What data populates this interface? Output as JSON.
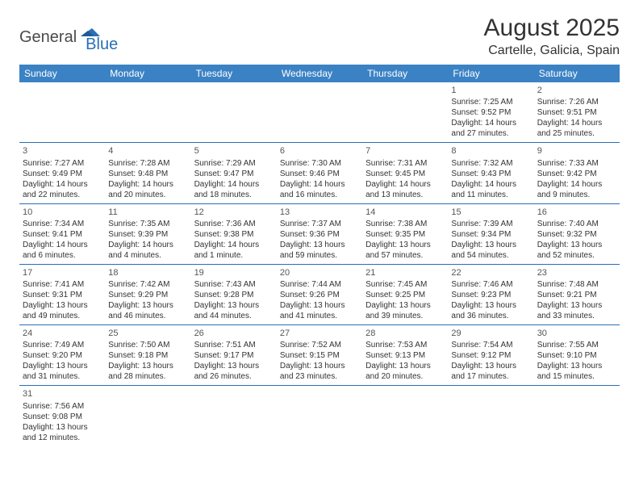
{
  "brand": {
    "part1": "General",
    "part2": "Blue"
  },
  "title": "August 2025",
  "location": "Cartelle, Galicia, Spain",
  "colors": {
    "header_bg": "#3b82c4",
    "header_text": "#ffffff",
    "rule": "#2a6fb5",
    "shade": "#ececec",
    "text": "#333333",
    "logo_blue": "#2a6fb5",
    "logo_gray": "#4a4a4a"
  },
  "weekdays": [
    "Sunday",
    "Monday",
    "Tuesday",
    "Wednesday",
    "Thursday",
    "Friday",
    "Saturday"
  ],
  "weeks": [
    [
      null,
      null,
      null,
      null,
      null,
      {
        "n": "1",
        "sr": "7:25 AM",
        "ss": "9:52 PM",
        "dl": "14 hours and 27 minutes."
      },
      {
        "n": "2",
        "sr": "7:26 AM",
        "ss": "9:51 PM",
        "dl": "14 hours and 25 minutes."
      }
    ],
    [
      {
        "n": "3",
        "sr": "7:27 AM",
        "ss": "9:49 PM",
        "dl": "14 hours and 22 minutes."
      },
      {
        "n": "4",
        "sr": "7:28 AM",
        "ss": "9:48 PM",
        "dl": "14 hours and 20 minutes."
      },
      {
        "n": "5",
        "sr": "7:29 AM",
        "ss": "9:47 PM",
        "dl": "14 hours and 18 minutes."
      },
      {
        "n": "6",
        "sr": "7:30 AM",
        "ss": "9:46 PM",
        "dl": "14 hours and 16 minutes."
      },
      {
        "n": "7",
        "sr": "7:31 AM",
        "ss": "9:45 PM",
        "dl": "14 hours and 13 minutes."
      },
      {
        "n": "8",
        "sr": "7:32 AM",
        "ss": "9:43 PM",
        "dl": "14 hours and 11 minutes."
      },
      {
        "n": "9",
        "sr": "7:33 AM",
        "ss": "9:42 PM",
        "dl": "14 hours and 9 minutes."
      }
    ],
    [
      {
        "n": "10",
        "sr": "7:34 AM",
        "ss": "9:41 PM",
        "dl": "14 hours and 6 minutes."
      },
      {
        "n": "11",
        "sr": "7:35 AM",
        "ss": "9:39 PM",
        "dl": "14 hours and 4 minutes."
      },
      {
        "n": "12",
        "sr": "7:36 AM",
        "ss": "9:38 PM",
        "dl": "14 hours and 1 minute."
      },
      {
        "n": "13",
        "sr": "7:37 AM",
        "ss": "9:36 PM",
        "dl": "13 hours and 59 minutes."
      },
      {
        "n": "14",
        "sr": "7:38 AM",
        "ss": "9:35 PM",
        "dl": "13 hours and 57 minutes."
      },
      {
        "n": "15",
        "sr": "7:39 AM",
        "ss": "9:34 PM",
        "dl": "13 hours and 54 minutes."
      },
      {
        "n": "16",
        "sr": "7:40 AM",
        "ss": "9:32 PM",
        "dl": "13 hours and 52 minutes."
      }
    ],
    [
      {
        "n": "17",
        "sr": "7:41 AM",
        "ss": "9:31 PM",
        "dl": "13 hours and 49 minutes."
      },
      {
        "n": "18",
        "sr": "7:42 AM",
        "ss": "9:29 PM",
        "dl": "13 hours and 46 minutes."
      },
      {
        "n": "19",
        "sr": "7:43 AM",
        "ss": "9:28 PM",
        "dl": "13 hours and 44 minutes."
      },
      {
        "n": "20",
        "sr": "7:44 AM",
        "ss": "9:26 PM",
        "dl": "13 hours and 41 minutes."
      },
      {
        "n": "21",
        "sr": "7:45 AM",
        "ss": "9:25 PM",
        "dl": "13 hours and 39 minutes."
      },
      {
        "n": "22",
        "sr": "7:46 AM",
        "ss": "9:23 PM",
        "dl": "13 hours and 36 minutes."
      },
      {
        "n": "23",
        "sr": "7:48 AM",
        "ss": "9:21 PM",
        "dl": "13 hours and 33 minutes."
      }
    ],
    [
      {
        "n": "24",
        "sr": "7:49 AM",
        "ss": "9:20 PM",
        "dl": "13 hours and 31 minutes."
      },
      {
        "n": "25",
        "sr": "7:50 AM",
        "ss": "9:18 PM",
        "dl": "13 hours and 28 minutes."
      },
      {
        "n": "26",
        "sr": "7:51 AM",
        "ss": "9:17 PM",
        "dl": "13 hours and 26 minutes."
      },
      {
        "n": "27",
        "sr": "7:52 AM",
        "ss": "9:15 PM",
        "dl": "13 hours and 23 minutes."
      },
      {
        "n": "28",
        "sr": "7:53 AM",
        "ss": "9:13 PM",
        "dl": "13 hours and 20 minutes."
      },
      {
        "n": "29",
        "sr": "7:54 AM",
        "ss": "9:12 PM",
        "dl": "13 hours and 17 minutes."
      },
      {
        "n": "30",
        "sr": "7:55 AM",
        "ss": "9:10 PM",
        "dl": "13 hours and 15 minutes."
      }
    ],
    [
      {
        "n": "31",
        "sr": "7:56 AM",
        "ss": "9:08 PM",
        "dl": "13 hours and 12 minutes."
      },
      null,
      null,
      null,
      null,
      null,
      null
    ]
  ],
  "labels": {
    "sunrise": "Sunrise:",
    "sunset": "Sunset:",
    "daylight": "Daylight:"
  }
}
